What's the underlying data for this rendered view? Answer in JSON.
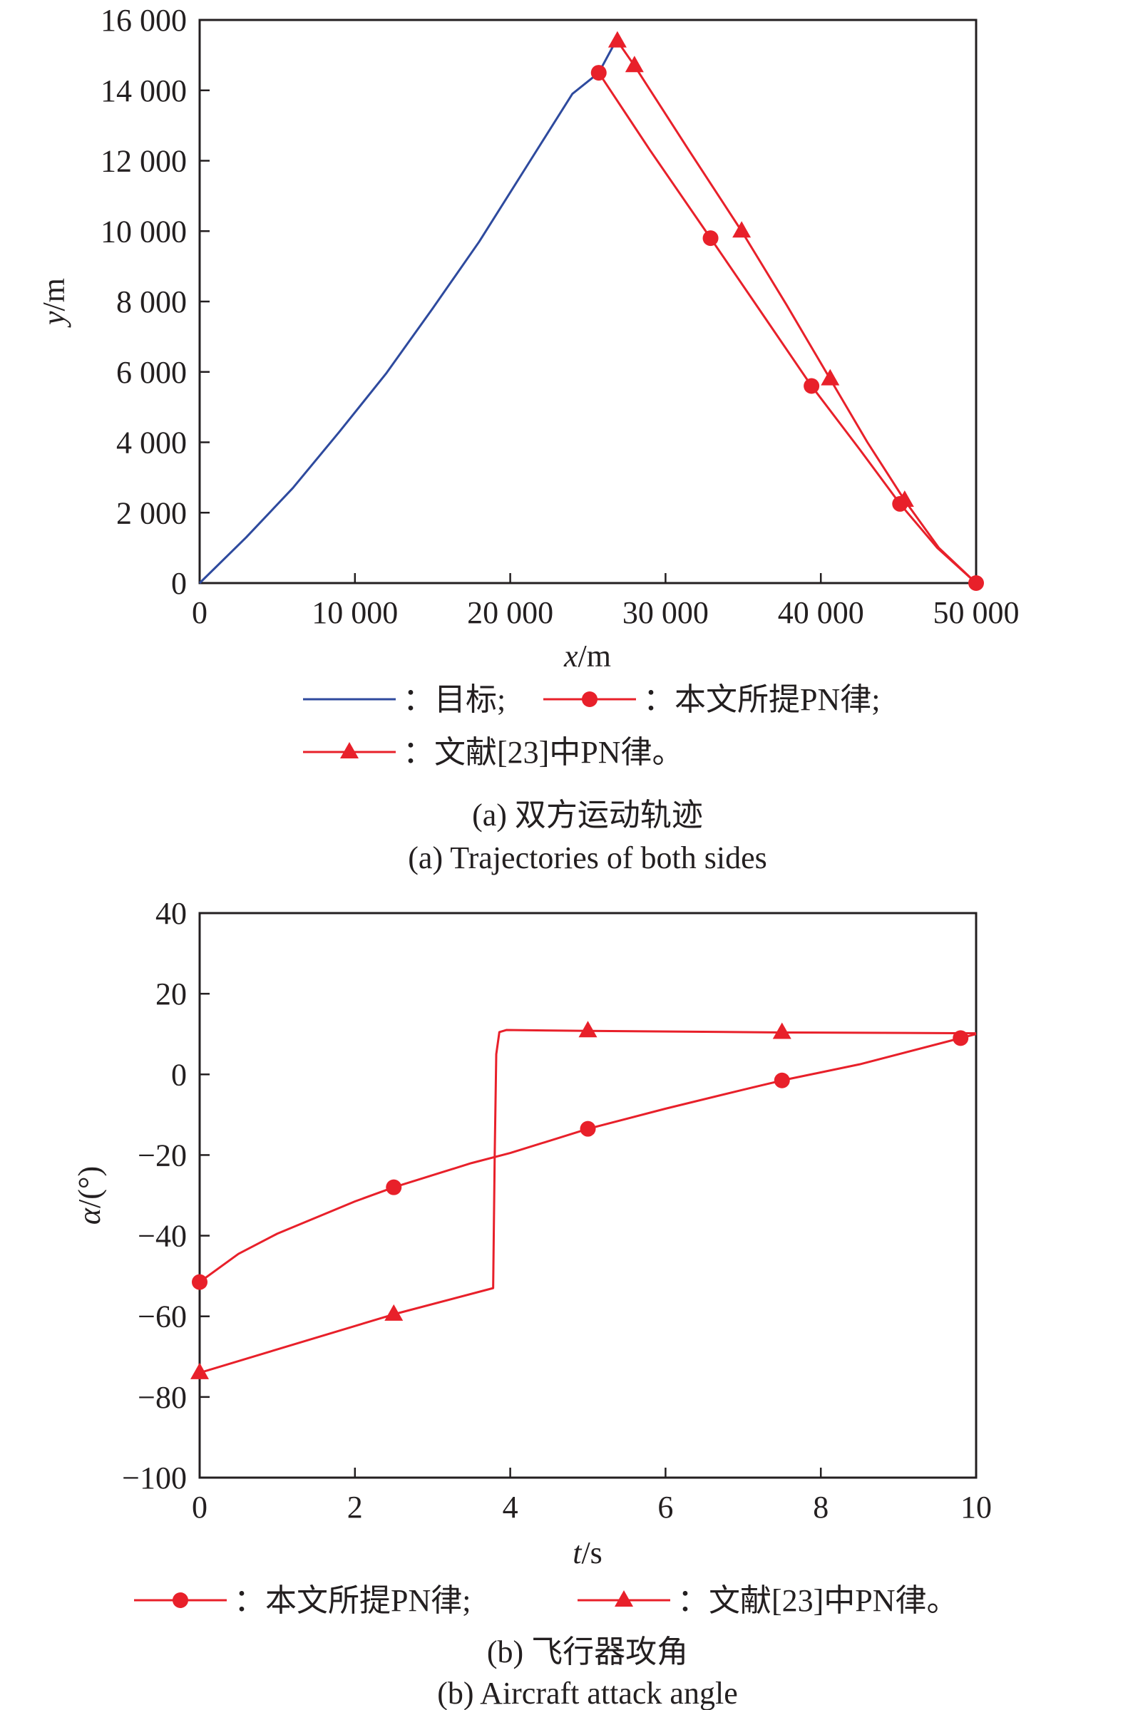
{
  "chart_data": [
    {
      "type": "line",
      "title": "(a) 双方运动轨迹",
      "subtitle": "(a) Trajectories of both sides",
      "xlabel_var": "x",
      "xlabel_unit": "/m",
      "ylabel_var": "y",
      "ylabel_unit": "/m",
      "xlim": [
        0,
        50000
      ],
      "ylim": [
        0,
        16000
      ],
      "xticks": [
        0,
        10000,
        20000,
        30000,
        40000,
        50000
      ],
      "xtick_labels": [
        "0",
        "10 000",
        "20 000",
        "30 000",
        "40 000",
        "50 000"
      ],
      "yticks": [
        0,
        2000,
        4000,
        6000,
        8000,
        10000,
        12000,
        14000,
        16000
      ],
      "ytick_labels": [
        "0",
        "2 000",
        "4 000",
        "6 000",
        "8 000",
        "10 000",
        "12 000",
        "14 000",
        "16 000"
      ],
      "grid": false,
      "legend_position": "bottom",
      "series": [
        {
          "name": "：目标;",
          "color": "#2e4a9e",
          "marker": "none",
          "x": [
            0,
            3000,
            6000,
            9000,
            12000,
            15000,
            18000,
            21000,
            24000,
            25700,
            26800
          ],
          "y": [
            0,
            1300,
            2700,
            4300,
            5950,
            7800,
            9700,
            11800,
            13900,
            14500,
            15400
          ],
          "markers_x": [],
          "markers_y": []
        },
        {
          "name": "：本文所提PN律;",
          "color": "#e8202a",
          "marker": "circle",
          "x": [
            25700,
            29000,
            32900,
            36000,
            39400,
            42500,
            45100,
            47500,
            50000
          ],
          "y": [
            14500,
            12300,
            9800,
            7800,
            5600,
            3800,
            2250,
            1000,
            0
          ],
          "markers_x": [
            25700,
            32900,
            39400,
            45100,
            50000
          ],
          "markers_y": [
            14500,
            9800,
            5600,
            2250,
            0
          ]
        },
        {
          "name": "：文献[23]中PN律。",
          "color": "#e8202a",
          "marker": "triangle",
          "x": [
            26900,
            28000,
            31500,
            34900,
            37800,
            40600,
            43000,
            45400,
            47600,
            50000
          ],
          "y": [
            15400,
            14700,
            12300,
            10000,
            7900,
            5800,
            4000,
            2350,
            1000,
            0
          ],
          "markers_x": [
            26900,
            28000,
            34900,
            40600,
            45400
          ],
          "markers_y": [
            15400,
            14700,
            10000,
            5800,
            2350
          ]
        }
      ]
    },
    {
      "type": "line",
      "title": "(b) 飞行器攻角",
      "subtitle": "(b) Aircraft attack angle",
      "xlabel_var": "t",
      "xlabel_unit": "/s",
      "ylabel_var": "α",
      "ylabel_unit": "/(°)",
      "xlim": [
        0,
        10
      ],
      "ylim": [
        -100,
        40
      ],
      "xticks": [
        0,
        2,
        4,
        6,
        8,
        10
      ],
      "xtick_labels": [
        "0",
        "2",
        "4",
        "6",
        "8",
        "10"
      ],
      "yticks": [
        -100,
        -80,
        -60,
        -40,
        -20,
        0,
        20,
        40
      ],
      "ytick_labels": [
        "−100",
        "−80",
        "−60",
        "−40",
        "−20",
        "0",
        "20",
        "40"
      ],
      "grid": false,
      "legend_position": "bottom",
      "series": [
        {
          "name": "：本文所提PN律;",
          "color": "#e8202a",
          "marker": "circle",
          "x": [
            0,
            0.5,
            1,
            1.5,
            2,
            2.5,
            3,
            3.5,
            4,
            5,
            6,
            7,
            7.5,
            8.5,
            9.8,
            10
          ],
          "y": [
            -51.5,
            -44.5,
            -39.5,
            -35.5,
            -31.5,
            -28,
            -25,
            -22,
            -19.5,
            -13.5,
            -8.5,
            -3.8,
            -1.5,
            2.5,
            9,
            10
          ],
          "markers_x": [
            0,
            2.5,
            5,
            7.5,
            9.8
          ],
          "markers_y": [
            -51.5,
            -28,
            -13.5,
            -1.5,
            9
          ]
        },
        {
          "name": "：文献[23]中PN律。",
          "color": "#e8202a",
          "marker": "triangle",
          "x": [
            0,
            2.5,
            3.78,
            3.8,
            3.82,
            3.86,
            3.95,
            5,
            7.5,
            10
          ],
          "y": [
            -74,
            -59.5,
            -53,
            -20,
            5,
            10.5,
            11,
            10.8,
            10.4,
            10.2
          ],
          "markers_x": [
            0,
            2.5,
            5,
            7.5
          ],
          "markers_y": [
            -74,
            -59.5,
            10.8,
            10.4
          ]
        }
      ]
    }
  ]
}
